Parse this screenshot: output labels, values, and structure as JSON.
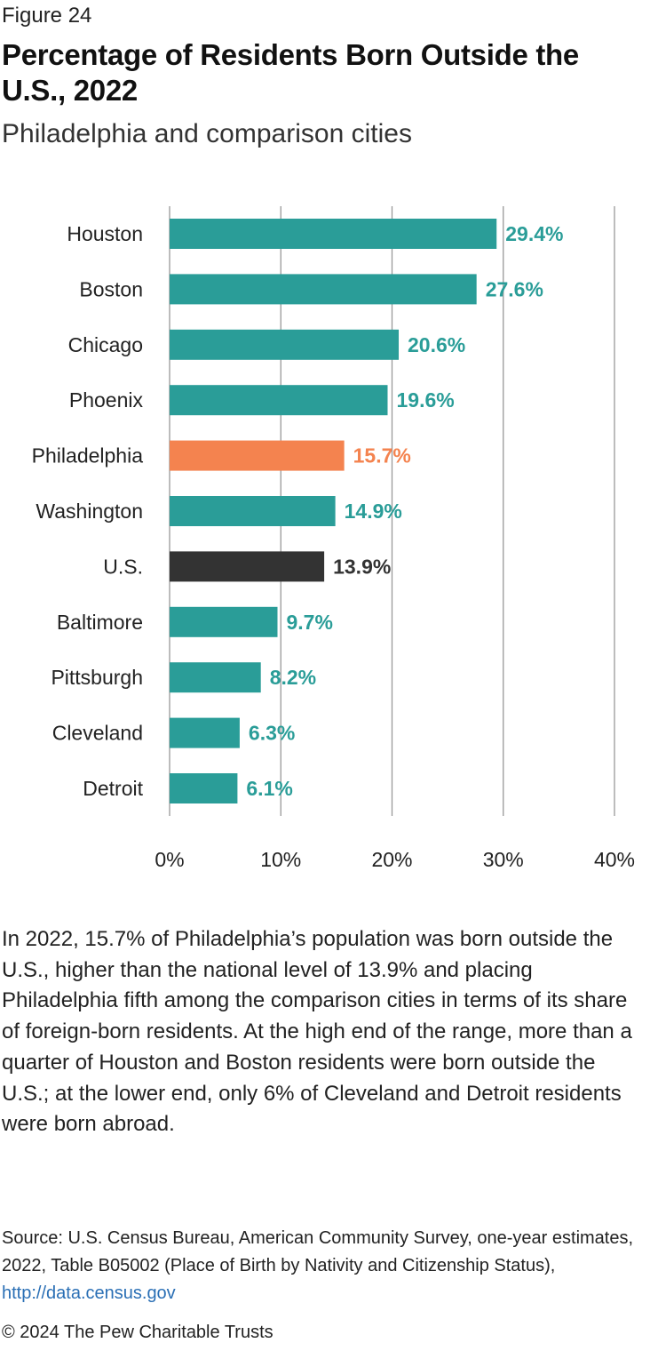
{
  "header": {
    "figure_label": "Figure 24",
    "title": "Percentage of Residents Born Outside the U.S., 2022",
    "subtitle": "Philadelphia and comparison cities"
  },
  "chart_data": {
    "type": "bar",
    "orientation": "horizontal",
    "categories": [
      "Houston",
      "Boston",
      "Chicago",
      "Phoenix",
      "Philadelphia",
      "Washington",
      "U.S.",
      "Baltimore",
      "Pittsburgh",
      "Cleveland",
      "Detroit"
    ],
    "values": [
      29.4,
      27.6,
      20.6,
      19.6,
      15.7,
      14.9,
      13.9,
      9.7,
      8.2,
      6.3,
      6.1
    ],
    "value_labels": [
      "29.4%",
      "27.6%",
      "20.6%",
      "19.6%",
      "15.7%",
      "14.9%",
      "13.9%",
      "9.7%",
      "8.2%",
      "6.3%",
      "6.1%"
    ],
    "bar_colors": [
      "#2a9d98",
      "#2a9d98",
      "#2a9d98",
      "#2a9d98",
      "#f4834f",
      "#2a9d98",
      "#333333",
      "#2a9d98",
      "#2a9d98",
      "#2a9d98",
      "#2a9d98"
    ],
    "xlim": [
      0,
      40
    ],
    "xticks": [
      0,
      10,
      20,
      30,
      40
    ],
    "xtick_labels": [
      "0%",
      "10%",
      "20%",
      "30%",
      "40%"
    ],
    "grid": true,
    "gridline_color": "#999999"
  },
  "body": {
    "paragraph": "In 2022, 15.7% of Philadelphia’s population was born outside the U.S., higher than the national level of 13.9% and placing Philadelphia fifth among the comparison cities in terms of its share of foreign-born residents. At the high end of the range, more than a quarter of Houston and Boston residents were born outside the U.S.; at the lower end, only 6% of Cleveland and Detroit residents were born abroad."
  },
  "footer": {
    "source_text": "Source: U.S. Census Bureau, American Community Survey, one-year estimates, 2022, Table B05002 (Place of Birth by Nativity and Citizenship Status),",
    "source_link": "http://data.census.gov",
    "copyright": "© 2024 The Pew Charitable Trusts"
  }
}
